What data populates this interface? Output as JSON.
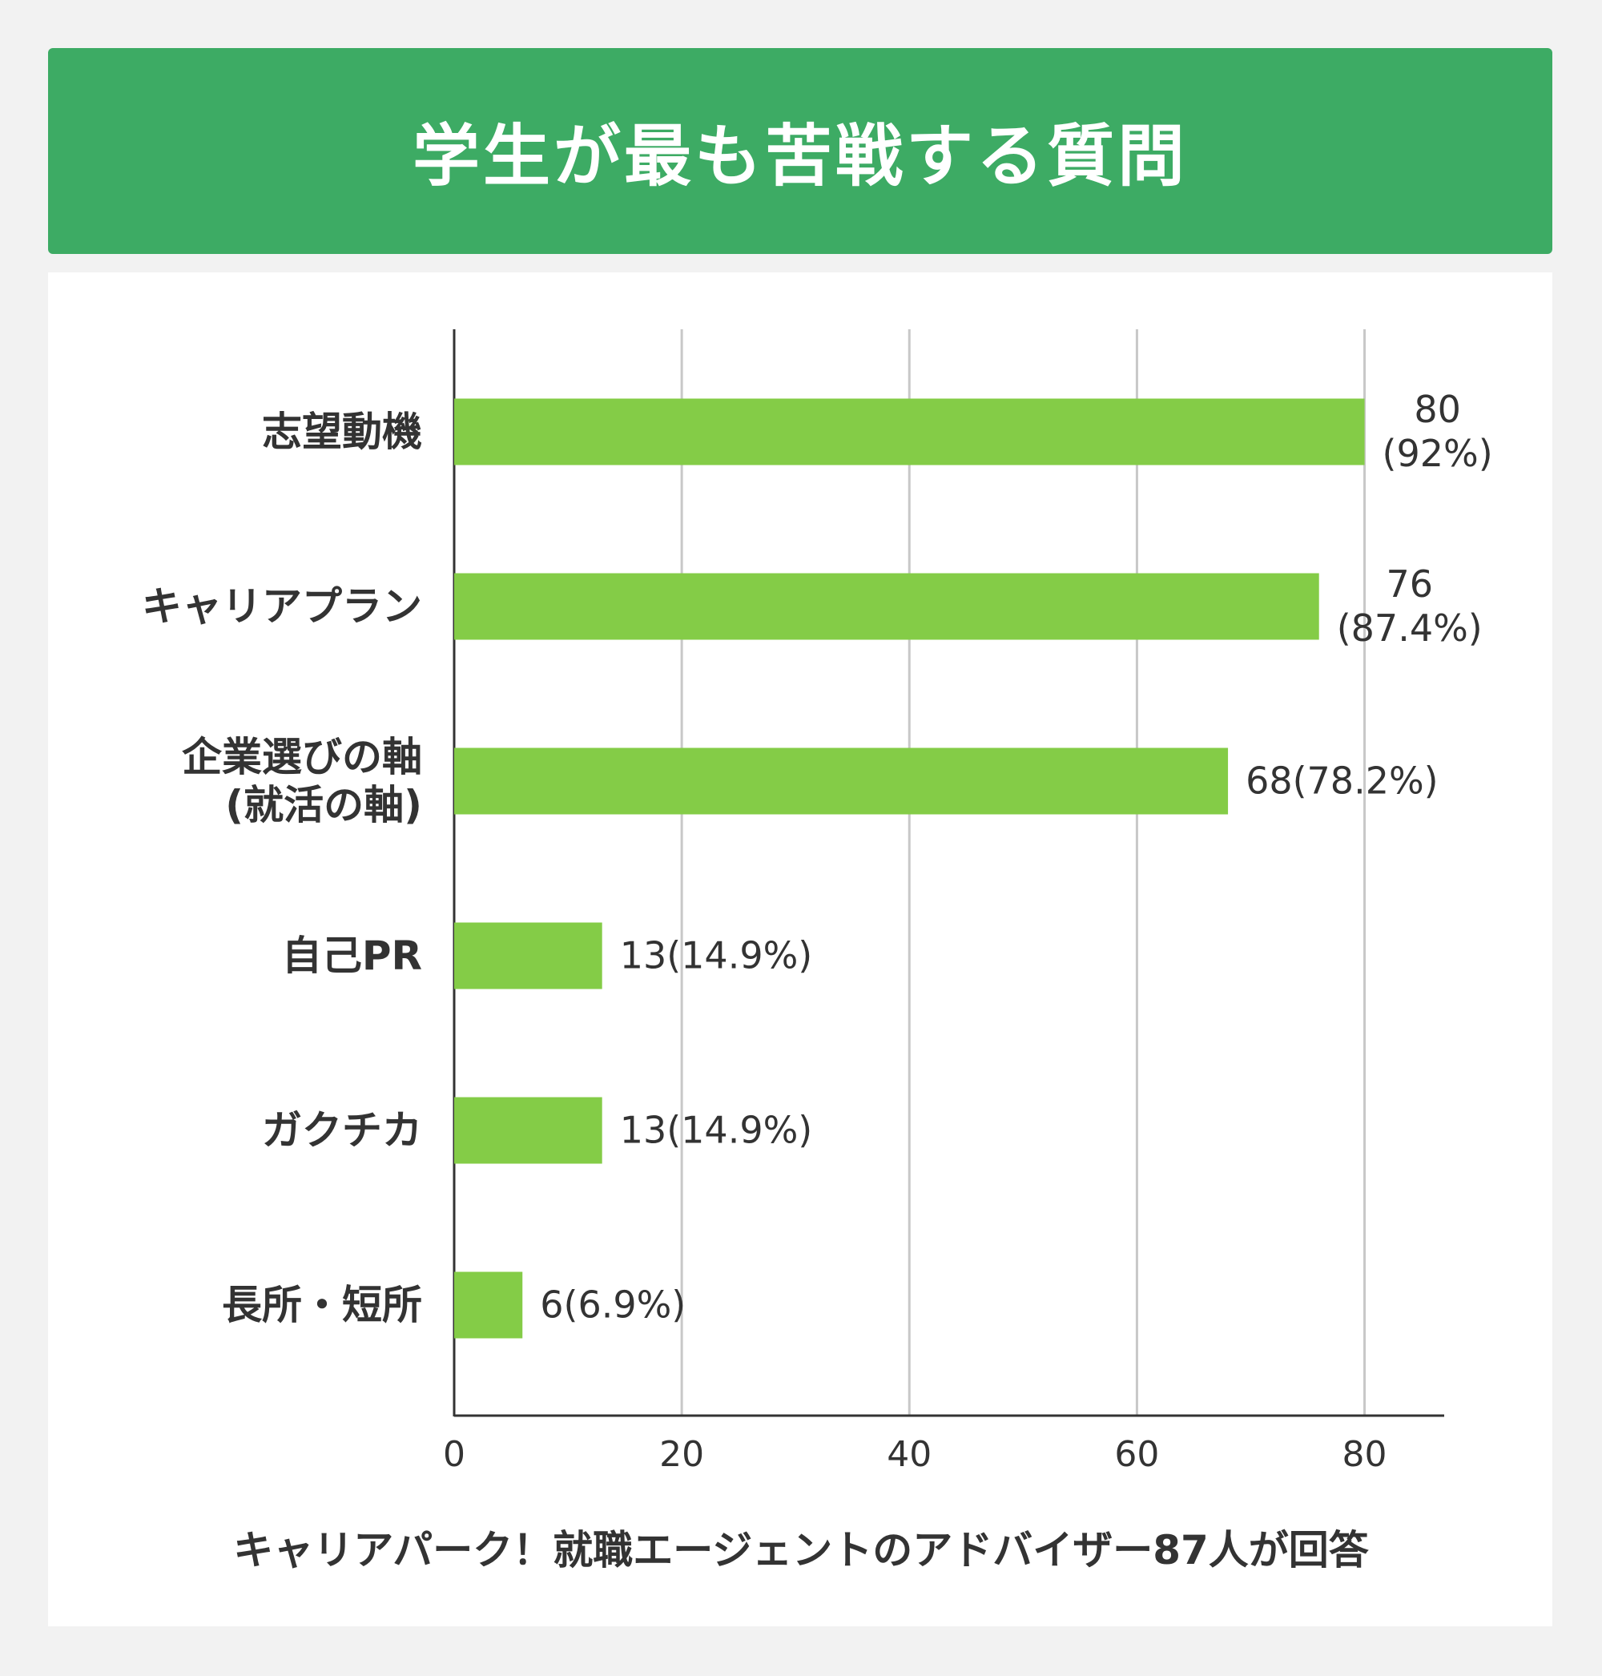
{
  "chart_data": {
    "type": "bar",
    "orientation": "horizontal",
    "title": "学生が最も苦戦する質問",
    "categories": [
      "志望動機",
      "キャリアプラン",
      "企業選びの軸\n(就活の軸)",
      "自己PR",
      "ガクチカ",
      "長所・短所"
    ],
    "values": [
      80,
      76,
      68,
      13,
      13,
      6
    ],
    "value_labels": [
      "80\n(92%)",
      "76\n(87.4%)",
      "68(78.2%)",
      "13(14.9%)",
      "13(14.9%)",
      "6(6.9%)"
    ],
    "color": "#84cc47",
    "xlim": [
      0,
      87
    ],
    "xticks": [
      0,
      20,
      40,
      60,
      80
    ],
    "grid": true,
    "note": "キャリアパーク！就職エージェントのアドバイザー87人が回答"
  }
}
